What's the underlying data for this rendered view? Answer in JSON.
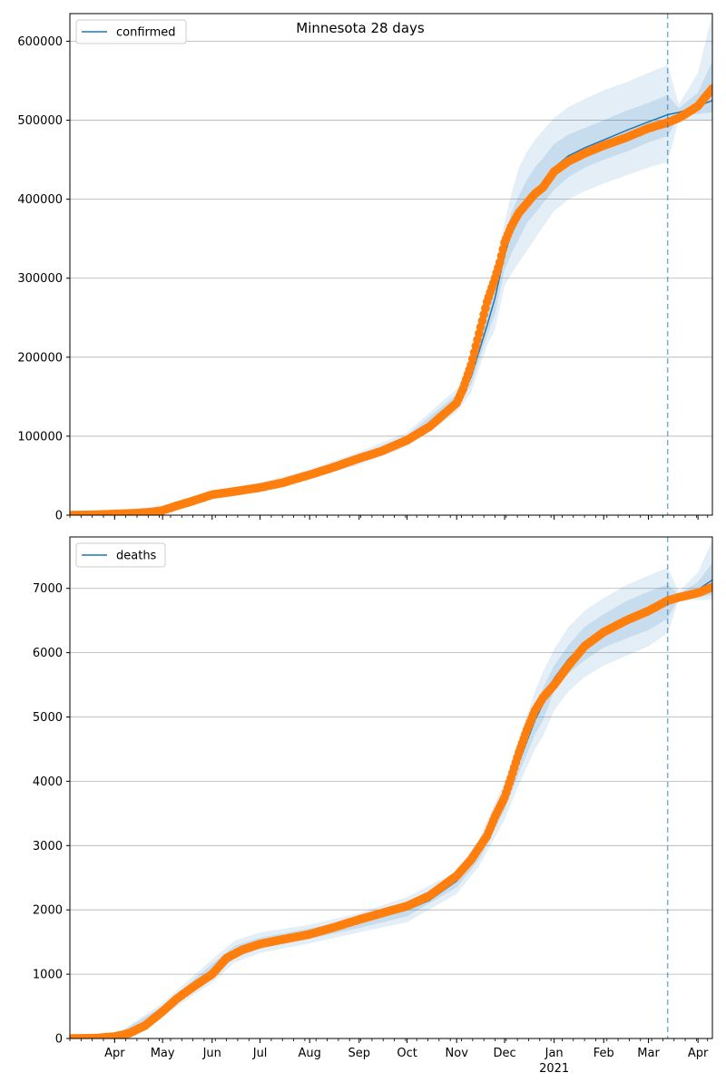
{
  "title": "Minnesota 28 days",
  "x_axis": {
    "ticks": [
      {
        "date": "2020-04-01",
        "label": "Apr"
      },
      {
        "date": "2020-05-01",
        "label": "May"
      },
      {
        "date": "2020-06-01",
        "label": "Jun"
      },
      {
        "date": "2020-07-01",
        "label": "Jul"
      },
      {
        "date": "2020-08-01",
        "label": "Aug"
      },
      {
        "date": "2020-09-01",
        "label": "Sep"
      },
      {
        "date": "2020-10-01",
        "label": "Oct"
      },
      {
        "date": "2020-11-01",
        "label": "Nov"
      },
      {
        "date": "2020-12-01",
        "label": "Dec"
      },
      {
        "date": "2021-01-01",
        "label": "Jan"
      },
      {
        "date": "2021-02-01",
        "label": "Feb"
      },
      {
        "date": "2021-03-01",
        "label": "Mar"
      },
      {
        "date": "2021-04-01",
        "label": "Apr"
      }
    ],
    "year_label": "2021",
    "range": [
      "2020-03-04",
      "2021-04-10"
    ]
  },
  "colors": {
    "model_line": "#1f77b4",
    "observed_points": "#ff7f0e",
    "band": "#1f77b4",
    "grid": "#b0b0b0",
    "forecast_start_line": "#1f77b4"
  },
  "chart_data": [
    {
      "type": "line",
      "legend": "confirmed",
      "legend_position": "top-left",
      "grid": "horizontal",
      "ylim": [
        0,
        635000
      ],
      "yticks": [
        0,
        100000,
        200000,
        300000,
        400000,
        500000,
        600000
      ],
      "forecast_start": "2021-03-13",
      "model": {
        "name": "confirmed",
        "x": [
          "2020-03-04",
          "2020-03-20",
          "2020-04-01",
          "2020-04-15",
          "2020-05-01",
          "2020-05-15",
          "2020-06-01",
          "2020-06-15",
          "2020-07-01",
          "2020-07-15",
          "2020-08-01",
          "2020-08-15",
          "2020-09-01",
          "2020-09-15",
          "2020-10-01",
          "2020-10-15",
          "2020-11-01",
          "2020-11-10",
          "2020-11-20",
          "2020-11-25",
          "2020-12-01",
          "2020-12-05",
          "2020-12-10",
          "2020-12-15",
          "2020-12-20",
          "2020-12-25",
          "2021-01-01",
          "2021-01-10",
          "2021-01-20",
          "2021-02-01",
          "2021-02-15",
          "2021-03-01",
          "2021-03-13",
          "2021-03-20",
          "2021-04-01",
          "2021-04-10"
        ],
        "y": [
          0,
          500,
          1500,
          4000,
          10000,
          18000,
          27000,
          31000,
          36000,
          42000,
          52000,
          61000,
          72000,
          82000,
          96000,
          115000,
          145000,
          175000,
          240000,
          275000,
          330000,
          355000,
          375000,
          395000,
          410000,
          422000,
          440000,
          455000,
          465000,
          475000,
          487000,
          498000,
          507000,
          510000,
          518000,
          525000
        ]
      },
      "bands": {
        "x": [
          "2020-03-04",
          "2020-05-01",
          "2020-06-01",
          "2020-07-01",
          "2020-08-01",
          "2020-09-01",
          "2020-10-01",
          "2020-11-01",
          "2020-11-10",
          "2020-11-20",
          "2020-11-25",
          "2020-12-01",
          "2020-12-05",
          "2020-12-10",
          "2020-12-15",
          "2020-12-20",
          "2020-12-25",
          "2021-01-01",
          "2021-01-10",
          "2021-01-20",
          "2021-02-01",
          "2021-02-15",
          "2021-03-01",
          "2021-03-13",
          "2021-03-20",
          "2021-04-01",
          "2021-04-10"
        ],
        "outer_upper": [
          0,
          12000,
          31000,
          41000,
          58000,
          80000,
          105000,
          160000,
          195000,
          265000,
          315000,
          370000,
          405000,
          440000,
          460000,
          475000,
          487000,
          503000,
          517000,
          527000,
          538000,
          548000,
          560000,
          570000,
          520000,
          560000,
          635000
        ],
        "inner_upper": [
          0,
          11000,
          29000,
          39000,
          55000,
          76000,
          101000,
          153000,
          185000,
          253000,
          295000,
          350000,
          382000,
          405000,
          425000,
          440000,
          452000,
          470000,
          482000,
          490000,
          500000,
          512000,
          522000,
          532000,
          515000,
          535000,
          575000
        ],
        "inner_lower": [
          0,
          9000,
          25000,
          34000,
          49000,
          68000,
          91000,
          137000,
          165000,
          227000,
          255000,
          310000,
          330000,
          350000,
          370000,
          382000,
          395000,
          412000,
          428000,
          440000,
          450000,
          460000,
          472000,
          480000,
          505000,
          508000,
          510000
        ],
        "outer_lower": [
          0,
          8000,
          23000,
          31000,
          46000,
          64000,
          87000,
          130000,
          155000,
          215000,
          235000,
          290000,
          305000,
          320000,
          335000,
          350000,
          365000,
          385000,
          400000,
          410000,
          420000,
          430000,
          440000,
          447000,
          500000,
          500000,
          500000
        ]
      },
      "observed": {
        "x": [
          "2020-03-04",
          "2020-03-20",
          "2020-04-01",
          "2020-04-15",
          "2020-04-25",
          "2020-05-01",
          "2020-05-10",
          "2020-05-20",
          "2020-06-01",
          "2020-06-15",
          "2020-07-01",
          "2020-07-15",
          "2020-08-01",
          "2020-08-15",
          "2020-09-01",
          "2020-09-15",
          "2020-10-01",
          "2020-10-15",
          "2020-11-01",
          "2020-11-05",
          "2020-11-10",
          "2020-11-15",
          "2020-11-20",
          "2020-11-25",
          "2020-11-28",
          "2020-12-01",
          "2020-12-05",
          "2020-12-10",
          "2020-12-15",
          "2020-12-20",
          "2020-12-25",
          "2021-01-01",
          "2021-01-10",
          "2021-01-20",
          "2021-02-01",
          "2021-02-15",
          "2021-03-01",
          "2021-03-13",
          "2021-03-20",
          "2021-03-25",
          "2021-04-01",
          "2021-04-05",
          "2021-04-10"
        ],
        "y": [
          0,
          500,
          1500,
          2500,
          4000,
          6000,
          12000,
          18000,
          26000,
          30000,
          35000,
          41000,
          51000,
          60000,
          72000,
          81000,
          95000,
          112000,
          142000,
          160000,
          190000,
          230000,
          270000,
          300000,
          320000,
          345000,
          365000,
          383000,
          395000,
          407000,
          415000,
          435000,
          448000,
          458000,
          468000,
          478000,
          490000,
          497000,
          503000,
          509000,
          518000,
          528000,
          540000
        ]
      }
    },
    {
      "type": "line",
      "legend": "deaths",
      "legend_position": "top-left",
      "grid": "horizontal",
      "ylim": [
        0,
        7800
      ],
      "yticks": [
        0,
        1000,
        2000,
        3000,
        4000,
        5000,
        6000,
        7000
      ],
      "forecast_start": "2021-03-13",
      "model": {
        "name": "deaths",
        "x": [
          "2020-03-04",
          "2020-03-20",
          "2020-04-01",
          "2020-04-15",
          "2020-05-01",
          "2020-05-15",
          "2020-06-01",
          "2020-06-15",
          "2020-07-01",
          "2020-07-15",
          "2020-08-01",
          "2020-08-15",
          "2020-09-01",
          "2020-09-15",
          "2020-10-01",
          "2020-10-15",
          "2020-11-01",
          "2020-11-15",
          "2020-12-01",
          "2020-12-10",
          "2020-12-20",
          "2020-12-25",
          "2021-01-01",
          "2021-01-10",
          "2021-01-20",
          "2021-02-01",
          "2021-02-15",
          "2021-03-01",
          "2021-03-13",
          "2021-03-20",
          "2021-04-01",
          "2021-04-10"
        ],
        "y": [
          0,
          20,
          40,
          150,
          450,
          750,
          1050,
          1350,
          1480,
          1550,
          1630,
          1700,
          1810,
          1900,
          2000,
          2150,
          2450,
          2900,
          3700,
          4300,
          4950,
          5200,
          5600,
          5900,
          6150,
          6350,
          6500,
          6650,
          6800,
          6880,
          6980,
          7130
        ]
      },
      "bands": {
        "x": [
          "2020-03-04",
          "2020-04-01",
          "2020-05-01",
          "2020-06-01",
          "2020-06-15",
          "2020-07-01",
          "2020-08-01",
          "2020-09-01",
          "2020-10-01",
          "2020-11-01",
          "2020-11-15",
          "2020-12-01",
          "2020-12-10",
          "2020-12-20",
          "2020-12-25",
          "2021-01-01",
          "2021-01-10",
          "2021-01-20",
          "2021-02-01",
          "2021-02-15",
          "2021-03-01",
          "2021-03-13",
          "2021-03-20",
          "2021-04-01",
          "2021-04-10"
        ],
        "outer_upper": [
          0,
          50,
          550,
          1230,
          1520,
          1650,
          1770,
          1950,
          2200,
          2600,
          3100,
          4000,
          4650,
          5400,
          5700,
          6050,
          6400,
          6650,
          6850,
          7050,
          7200,
          7320,
          6950,
          7250,
          7750
        ],
        "inner_upper": [
          0,
          45,
          500,
          1160,
          1440,
          1570,
          1710,
          1880,
          2120,
          2520,
          3000,
          3850,
          4470,
          5170,
          5450,
          5800,
          6120,
          6400,
          6600,
          6800,
          6950,
          7060,
          6910,
          7100,
          7400
        ],
        "inner_lower": [
          0,
          35,
          400,
          940,
          1250,
          1400,
          1550,
          1720,
          1900,
          2350,
          2780,
          3550,
          4130,
          4730,
          4950,
          5400,
          5680,
          5880,
          6080,
          6220,
          6350,
          6530,
          6850,
          6860,
          6900
        ],
        "outer_lower": [
          0,
          30,
          350,
          870,
          1180,
          1330,
          1480,
          1650,
          1810,
          2250,
          2680,
          3400,
          3950,
          4500,
          4700,
          5100,
          5400,
          5620,
          5800,
          5950,
          6100,
          6300,
          6820,
          6820,
          6820
        ]
      },
      "observed": {
        "x": [
          "2020-03-04",
          "2020-03-20",
          "2020-04-01",
          "2020-04-10",
          "2020-04-20",
          "2020-05-01",
          "2020-05-10",
          "2020-05-20",
          "2020-06-01",
          "2020-06-10",
          "2020-06-20",
          "2020-07-01",
          "2020-07-15",
          "2020-08-01",
          "2020-08-15",
          "2020-09-01",
          "2020-09-15",
          "2020-10-01",
          "2020-10-15",
          "2020-11-01",
          "2020-11-10",
          "2020-11-20",
          "2020-11-25",
          "2020-12-01",
          "2020-12-05",
          "2020-12-10",
          "2020-12-15",
          "2020-12-20",
          "2020-12-25",
          "2021-01-01",
          "2021-01-10",
          "2021-01-20",
          "2021-02-01",
          "2021-02-15",
          "2021-03-01",
          "2021-03-13",
          "2021-03-20",
          "2021-04-01",
          "2021-04-10"
        ],
        "y": [
          0,
          5,
          30,
          80,
          200,
          420,
          620,
          800,
          1000,
          1250,
          1380,
          1470,
          1540,
          1620,
          1720,
          1850,
          1950,
          2060,
          2220,
          2530,
          2780,
          3150,
          3450,
          3750,
          4050,
          4450,
          4800,
          5100,
          5300,
          5500,
          5800,
          6100,
          6320,
          6500,
          6650,
          6810,
          6860,
          6930,
          7020
        ]
      }
    }
  ]
}
